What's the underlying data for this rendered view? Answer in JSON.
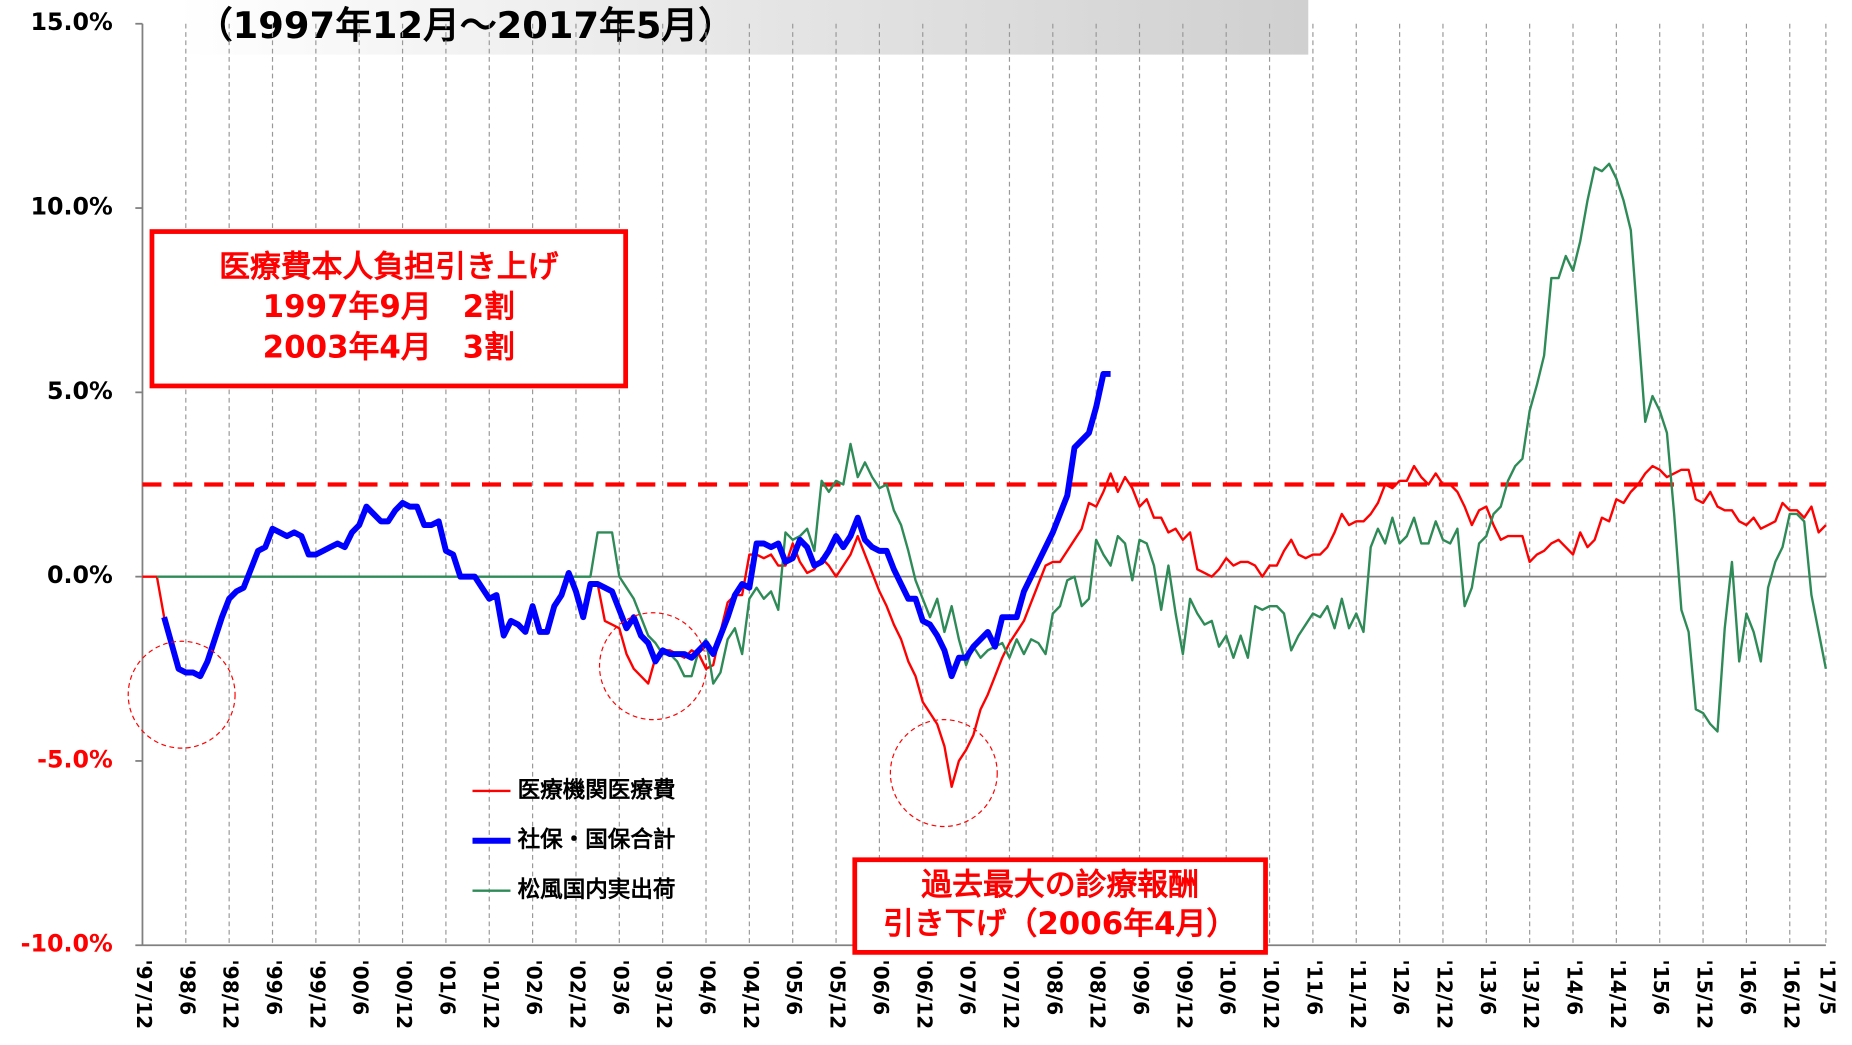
{
  "chart_data": {
    "type": "line",
    "title": "（1997年12月～2017年5月）",
    "annotations": [
      {
        "lines": [
          "医療費本人負担引き上げ",
          "1997年9月　2割",
          "2003年4月　3割"
        ],
        "color": "#ff0000"
      },
      {
        "lines": [
          "過去最大の診療報酬",
          "引き下げ（2006年4月）"
        ],
        "color": "#ff0000"
      }
    ],
    "categories": [
      "'97/12",
      null,
      null,
      null,
      null,
      null,
      "'98/6",
      null,
      null,
      null,
      null,
      null,
      "'98/12",
      null,
      null,
      null,
      null,
      null,
      "'99/6",
      null,
      null,
      null,
      null,
      null,
      "'99/12",
      null,
      null,
      null,
      null,
      null,
      "'00/6",
      null,
      null,
      null,
      null,
      null,
      "'00/12",
      null,
      null,
      null,
      null,
      null,
      "'01/6",
      null,
      null,
      null,
      null,
      null,
      "'01/12",
      null,
      null,
      null,
      null,
      null,
      "'02/6",
      null,
      null,
      null,
      null,
      null,
      "'02/12",
      null,
      null,
      null,
      null,
      null,
      "'03/6",
      null,
      null,
      null,
      null,
      null,
      "'03/12",
      null,
      null,
      null,
      null,
      null,
      "'04/6",
      null,
      null,
      null,
      null,
      null,
      "'04/12",
      null,
      null,
      null,
      null,
      null,
      "'05/6",
      null,
      null,
      null,
      null,
      null,
      "'05/12",
      null,
      null,
      null,
      null,
      null,
      "'06/6",
      null,
      null,
      null,
      null,
      null,
      "'06/12",
      null,
      null,
      null,
      null,
      null,
      "'07/6",
      null,
      null,
      null,
      null,
      null,
      "'07/12",
      null,
      null,
      null,
      null,
      null,
      "'08/6",
      null,
      null,
      null,
      null,
      null,
      "'08/12",
      null,
      null,
      null,
      null,
      null,
      "'09/6",
      null,
      null,
      null,
      null,
      null,
      "'09/12",
      null,
      null,
      null,
      null,
      null,
      "'10/6",
      null,
      null,
      null,
      null,
      null,
      "'10/12",
      null,
      null,
      null,
      null,
      null,
      "'11/6",
      null,
      null,
      null,
      null,
      null,
      "'11/12",
      null,
      null,
      null,
      null,
      null,
      "'12/6",
      null,
      null,
      null,
      null,
      null,
      "'12/12",
      null,
      null,
      null,
      null,
      null,
      "'13/6",
      null,
      null,
      null,
      null,
      null,
      "'13/12",
      null,
      null,
      null,
      null,
      null,
      "'14/6",
      null,
      null,
      null,
      null,
      null,
      "'14/12",
      null,
      null,
      null,
      null,
      null,
      "'15/6",
      null,
      null,
      null,
      null,
      null,
      "'15/12",
      null,
      null,
      null,
      null,
      null,
      "'16/6",
      null,
      null,
      null,
      null,
      null,
      "'16/12",
      null,
      null,
      null,
      null,
      "'17/5"
    ],
    "series": [
      {
        "name": "医療機関医療費",
        "color": "#ff0000",
        "width": 2,
        "values": [
          0,
          0,
          0,
          -1.1,
          -1.8,
          -2.5,
          -2.6,
          -2.6,
          -2.7,
          -2.3,
          -1.7,
          -1.1,
          -0.6,
          -0.4,
          -0.3,
          0.2,
          0.7,
          0.8,
          1.3,
          1.2,
          1.1,
          1.2,
          1.1,
          0.6,
          0.6,
          0.7,
          0.8,
          0.9,
          0.8,
          1.2,
          1.4,
          1.9,
          1.7,
          1.5,
          1.5,
          1.8,
          2.0,
          1.9,
          1.9,
          1.4,
          1.4,
          1.5,
          0.7,
          0.6,
          0.0,
          0.0,
          0.0,
          -0.3,
          -0.6,
          -0.5,
          -1.6,
          -1.2,
          -1.3,
          -1.5,
          -0.8,
          -1.5,
          -1.5,
          -0.8,
          -0.5,
          0.1,
          -0.4,
          -1.1,
          -0.2,
          -0.2,
          -1.2,
          -1.3,
          -1.4,
          -2.1,
          -2.5,
          -2.7,
          -2.9,
          -2.2,
          -2.0,
          -2.0,
          -2.1,
          -2.2,
          -2.0,
          -2.1,
          -2.5,
          -2.4,
          -1.5,
          -0.7,
          -0.5,
          -0.5,
          0.6,
          0.6,
          0.5,
          0.6,
          0.3,
          0.3,
          0.9,
          0.4,
          0.1,
          0.2,
          0.5,
          0.3,
          0.0,
          0.3,
          0.6,
          1.1,
          0.6,
          0.1,
          -0.4,
          -0.8,
          -1.3,
          -1.7,
          -2.3,
          -2.7,
          -3.4,
          -3.7,
          -4.0,
          -4.6,
          -5.7,
          -5.0,
          -4.7,
          -4.3,
          -3.6,
          -3.2,
          -2.7,
          -2.2,
          -1.8,
          -1.5,
          -1.2,
          -0.7,
          -0.2,
          0.3,
          0.4,
          0.4,
          0.7,
          1.0,
          1.3,
          2.0,
          1.9,
          2.3,
          2.8,
          2.3,
          2.7,
          2.4,
          1.9,
          2.1,
          1.6,
          1.6,
          1.2,
          1.3,
          1.0,
          1.2,
          0.2,
          0.1,
          0.0,
          0.2,
          0.5,
          0.3,
          0.4,
          0.4,
          0.3,
          0.0,
          0.3,
          0.3,
          0.7,
          1.0,
          0.6,
          0.5,
          0.6,
          0.6,
          0.8,
          1.2,
          1.7,
          1.4,
          1.5,
          1.5,
          1.7,
          2.0,
          2.5,
          2.4,
          2.6,
          2.6,
          3.0,
          2.7,
          2.5,
          2.8,
          2.5,
          2.5,
          2.3,
          1.9,
          1.4,
          1.8,
          1.9,
          1.4,
          1.0,
          1.1,
          1.1,
          1.1,
          0.4,
          0.6,
          0.7,
          0.9,
          1.0,
          0.8,
          0.6,
          1.2,
          0.8,
          1.0,
          1.6,
          1.5,
          2.1,
          2.0,
          2.3,
          2.5,
          2.8,
          3.0,
          2.9,
          2.7,
          2.8,
          2.9,
          2.9,
          2.1,
          2.0,
          2.3,
          1.9,
          1.8,
          1.8,
          1.5,
          1.4,
          1.6,
          1.3,
          1.4,
          1.5,
          2.0,
          1.8,
          1.8,
          1.6,
          1.9,
          1.2,
          1.4
        ]
      },
      {
        "name": "松風国内実出荷",
        "color": "#2e8b57",
        "width": 2,
        "values": [
          null,
          null,
          0,
          0,
          0,
          0,
          0,
          0,
          0,
          0,
          0,
          0,
          0,
          0,
          0,
          0,
          0,
          0,
          0,
          0,
          0,
          0,
          0,
          0,
          0,
          0,
          0,
          0,
          0,
          0,
          0,
          0,
          0,
          0,
          0,
          0,
          0,
          0,
          0,
          0,
          0,
          0,
          0,
          0,
          0,
          0,
          0,
          0,
          0,
          0,
          0,
          0,
          0,
          0,
          0,
          0,
          0,
          0,
          0,
          0,
          0,
          0,
          0,
          1.2,
          1.2,
          1.2,
          0.0,
          -0.3,
          -0.6,
          -1.1,
          -1.6,
          -1.8,
          -2.1,
          -2.1,
          -2.3,
          -2.7,
          -2.7,
          -2.0,
          -1.7,
          -2.9,
          -2.6,
          -1.7,
          -1.4,
          -2.1,
          -0.6,
          -0.3,
          -0.6,
          -0.4,
          -0.9,
          1.2,
          1.0,
          1.1,
          1.3,
          0.7,
          2.6,
          2.3,
          2.6,
          2.5,
          3.6,
          2.7,
          3.1,
          2.7,
          2.4,
          2.5,
          1.8,
          1.4,
          0.7,
          -0.1,
          -0.6,
          -1.1,
          -0.6,
          -1.5,
          -0.8,
          -1.7,
          -2.4,
          -1.9,
          -2.2,
          -2.0,
          -1.9,
          -1.8,
          -2.2,
          -1.7,
          -2.1,
          -1.7,
          -1.8,
          -2.1,
          -1.0,
          -0.8,
          -0.1,
          0.0,
          -0.8,
          -0.6,
          1.0,
          0.6,
          0.3,
          1.1,
          0.9,
          -0.1,
          1.0,
          0.9,
          0.3,
          -0.9,
          0.3,
          -1.0,
          -2.1,
          -0.6,
          -1.0,
          -1.3,
          -1.2,
          -1.9,
          -1.6,
          -2.2,
          -1.6,
          -2.2,
          -0.8,
          -0.9,
          -0.8,
          -0.8,
          -1.0,
          -2.0,
          -1.6,
          -1.3,
          -1.0,
          -1.1,
          -0.8,
          -1.4,
          -0.6,
          -1.4,
          -1.0,
          -1.5,
          0.8,
          1.3,
          0.9,
          1.6,
          0.9,
          1.1,
          1.6,
          0.9,
          0.9,
          1.5,
          1.0,
          0.9,
          1.3,
          -0.8,
          -0.3,
          0.9,
          1.1,
          1.7,
          1.9,
          2.6,
          3.0,
          3.2,
          4.5,
          5.2,
          6.0,
          8.1,
          8.1,
          8.7,
          8.3,
          9.1,
          10.2,
          11.1,
          11.0,
          11.2,
          10.8,
          10.2,
          9.4,
          6.8,
          4.2,
          4.9,
          4.5,
          3.9,
          1.7,
          -0.9,
          -1.5,
          -3.6,
          -3.7,
          -4.0,
          -4.2,
          -1.4,
          0.4,
          -2.3,
          -1.0,
          -1.5,
          -2.3,
          -0.3,
          0.4,
          0.8,
          1.7,
          1.7,
          1.5,
          -0.5,
          -1.5,
          -2.5
        ]
      },
      {
        "name": "社保・国保合計",
        "color": "#0000ff",
        "width": 5,
        "values": [
          null,
          null,
          null,
          -1.1,
          -1.8,
          -2.5,
          -2.6,
          -2.6,
          -2.7,
          -2.3,
          -1.7,
          -1.1,
          -0.6,
          -0.4,
          -0.3,
          0.2,
          0.7,
          0.8,
          1.3,
          1.2,
          1.1,
          1.2,
          1.1,
          0.6,
          0.6,
          0.7,
          0.8,
          0.9,
          0.8,
          1.2,
          1.4,
          1.9,
          1.7,
          1.5,
          1.5,
          1.8,
          2.0,
          1.9,
          1.9,
          1.4,
          1.4,
          1.5,
          0.7,
          0.6,
          0.0,
          0.0,
          0.0,
          -0.3,
          -0.6,
          -0.5,
          -1.6,
          -1.2,
          -1.3,
          -1.5,
          -0.8,
          -1.5,
          -1.5,
          -0.8,
          -0.5,
          0.1,
          -0.4,
          -1.1,
          -0.2,
          -0.2,
          -0.3,
          -0.4,
          -0.9,
          -1.4,
          -1.1,
          -1.6,
          -1.8,
          -2.3,
          -2.0,
          -2.1,
          -2.1,
          -2.1,
          -2.2,
          -2.0,
          -1.8,
          -2.1,
          -1.6,
          -1.1,
          -0.5,
          -0.2,
          -0.3,
          0.9,
          0.9,
          0.8,
          0.9,
          0.4,
          0.5,
          1.0,
          0.8,
          0.3,
          0.4,
          0.7,
          1.1,
          0.8,
          1.1,
          1.6,
          1.0,
          0.8,
          0.7,
          0.7,
          0.2,
          -0.2,
          -0.6,
          -0.6,
          -1.2,
          -1.3,
          -1.6,
          -2.0,
          -2.7,
          -2.2,
          -2.2,
          -1.9,
          -1.7,
          -1.5,
          -1.9,
          -1.1,
          -1.1,
          -1.1,
          -0.4,
          0.0,
          0.4,
          0.8,
          1.2,
          1.7,
          2.2,
          3.5,
          3.7,
          3.9,
          4.6,
          5.5,
          5.5,
          null,
          null,
          null,
          null,
          null,
          null,
          null,
          null,
          null,
          null,
          null,
          null,
          null,
          null,
          null,
          null,
          null,
          null,
          null,
          null,
          null,
          null,
          null,
          null,
          null,
          null,
          null,
          null,
          null,
          null,
          null,
          null,
          null,
          null,
          null,
          null,
          null,
          null,
          null,
          null,
          null,
          null,
          null,
          null,
          null,
          null,
          null,
          null,
          null,
          null,
          null,
          null,
          null,
          null,
          null,
          null,
          null,
          null,
          null,
          null,
          null,
          null,
          null,
          null,
          null,
          null,
          null,
          null,
          null,
          null,
          null,
          null,
          null,
          null,
          null,
          null,
          null,
          null,
          null,
          null,
          null,
          null,
          null,
          null,
          null,
          null,
          null,
          null,
          null,
          null,
          null,
          null,
          null,
          null,
          null,
          null,
          null,
          null,
          null
        ]
      }
    ],
    "legend_order": [
      0,
      2,
      1
    ],
    "ylim": [
      -10,
      15
    ],
    "yticks": [
      {
        "value": -10,
        "label": "-10.0%",
        "color": "#ff0000"
      },
      {
        "value": -5,
        "label": "-5.0%",
        "color": "#ff0000"
      },
      {
        "value": 0,
        "label": "0.0%"
      },
      {
        "value": 5,
        "label": "5.0%"
      },
      {
        "value": 10,
        "label": "10.0%"
      },
      {
        "value": 15,
        "label": "15.0%"
      }
    ],
    "reference_line": {
      "value": 2.5,
      "color": "#ff0000"
    },
    "xgrid": true
  }
}
